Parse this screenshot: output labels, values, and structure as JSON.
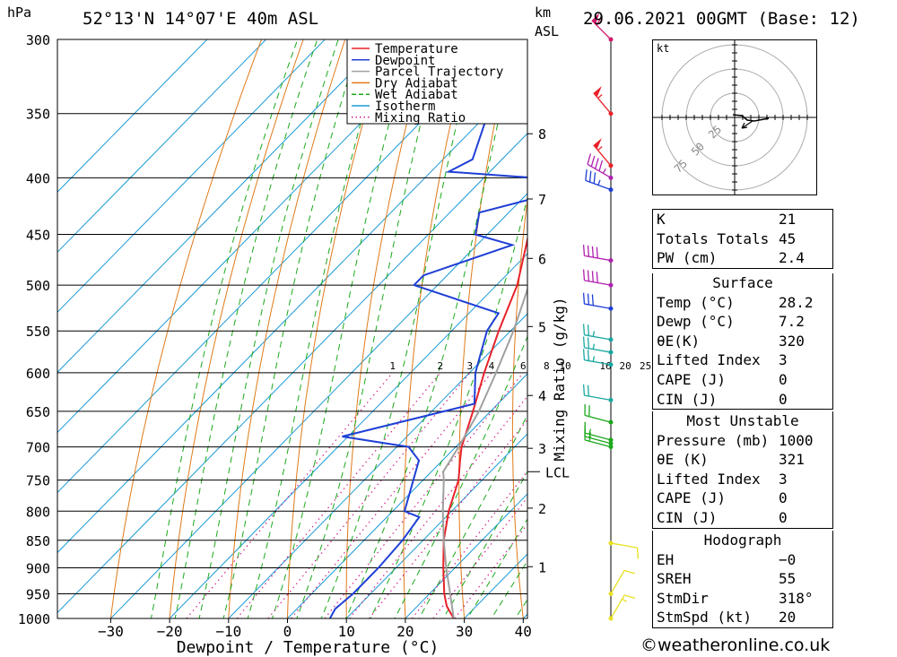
{
  "header": {
    "location": "52°13'N 14°07'E 40m ASL",
    "datetime": "29.06.2021 00GMT (Base: 12)",
    "pressure_unit": "hPa",
    "km_unit": "km",
    "asl_label": "ASL"
  },
  "chart_data": {
    "type": "line",
    "xlabel": "Dewpoint / Temperature (°C)",
    "ylabel": "hPa",
    "mixing_ratio_axis_label": "Mixing Ratio (g/kg)",
    "x_ticks": [
      -30,
      -20,
      -10,
      0,
      10,
      20,
      30,
      40
    ],
    "x_tick_labels": [
      "−30",
      "−20",
      "−10",
      "0",
      "10",
      "20",
      "30",
      "40"
    ],
    "pressure_levels": [
      300,
      350,
      400,
      450,
      500,
      550,
      600,
      650,
      700,
      750,
      800,
      850,
      900,
      950,
      1000
    ],
    "xlim": [
      -40,
      40
    ],
    "ylim": [
      1000,
      300
    ],
    "skew_deg_per_log": 1,
    "height_ticks": [
      {
        "label": "8",
        "p": 365
      },
      {
        "label": "7",
        "p": 418
      },
      {
        "label": "6",
        "p": 473
      },
      {
        "label": "5",
        "p": 545
      },
      {
        "label": "4",
        "p": 629
      },
      {
        "label": "3",
        "p": 702
      },
      {
        "label": "2",
        "p": 795
      },
      {
        "label": "1",
        "p": 898
      }
    ],
    "lcl": {
      "label": "LCL",
      "p": 737
    },
    "mixing_ratio_labels": [
      "1",
      "2",
      "3",
      "4",
      "6",
      "8",
      "10",
      "16",
      "20",
      "25"
    ],
    "mixing_ratio_values": [
      1,
      2,
      3,
      4,
      6,
      8,
      10,
      16,
      20,
      25
    ],
    "legend": {
      "position": "top-right of plot",
      "entries": [
        {
          "name": "Temperature",
          "color": "#e8222a",
          "style": "solid"
        },
        {
          "name": "Dewpoint",
          "color": "#1f3fd6",
          "style": "solid"
        },
        {
          "name": "Parcel Trajectory",
          "color": "#a0a0a0",
          "style": "solid"
        },
        {
          "name": "Dry Adiabat",
          "color": "#e07a1a",
          "style": "solid"
        },
        {
          "name": "Wet Adiabat",
          "color": "#1aa81a",
          "style": "dashed"
        },
        {
          "name": "Isotherm",
          "color": "#1a9ad6",
          "style": "solid"
        },
        {
          "name": "Mixing Ratio",
          "color": "#d0208a",
          "style": "dotted"
        }
      ]
    },
    "series": [
      {
        "name": "Temperature",
        "color": "#e8222a",
        "points": [
          [
            1000,
            28.2
          ],
          [
            975,
            25
          ],
          [
            950,
            22.5
          ],
          [
            900,
            18
          ],
          [
            850,
            13.5
          ],
          [
            800,
            9.5
          ],
          [
            750,
            6
          ],
          [
            720,
            3
          ],
          [
            700,
            1
          ],
          [
            650,
            -3
          ],
          [
            600,
            -7.5
          ],
          [
            550,
            -12
          ],
          [
            500,
            -16.5
          ],
          [
            450,
            -23
          ],
          [
            400,
            -31.5
          ],
          [
            385,
            -32
          ],
          [
            350,
            -36.5
          ],
          [
            300,
            -44.5
          ]
        ]
      },
      {
        "name": "Dewpoint",
        "color": "#1f3fd6",
        "points": [
          [
            1000,
            7.2
          ],
          [
            980,
            6.5
          ],
          [
            950,
            7
          ],
          [
            900,
            7
          ],
          [
            850,
            6.5
          ],
          [
            810,
            5.5
          ],
          [
            800,
            2
          ],
          [
            720,
            -4
          ],
          [
            700,
            -8
          ],
          [
            685,
            -21
          ],
          [
            640,
            -4
          ],
          [
            600,
            -9
          ],
          [
            550,
            -14
          ],
          [
            530,
            -15
          ],
          [
            500,
            -34
          ],
          [
            490,
            -34
          ],
          [
            460,
            -24
          ],
          [
            450,
            -32
          ],
          [
            430,
            -35
          ],
          [
            412,
            -25
          ],
          [
            402,
            -25.5
          ],
          [
            395,
            -47
          ],
          [
            385,
            -45
          ],
          [
            350,
            -50
          ],
          [
            300,
            -56
          ]
        ]
      },
      {
        "name": "Parcel Trajectory",
        "color": "#a0a0a0",
        "points": [
          [
            1000,
            28.2
          ],
          [
            950,
            23.5
          ],
          [
            900,
            18.5
          ],
          [
            850,
            13.5
          ],
          [
            800,
            8.5
          ],
          [
            750,
            3.5
          ],
          [
            737,
            2
          ],
          [
            700,
            0.5
          ],
          [
            650,
            -2
          ],
          [
            600,
            -5.5
          ],
          [
            550,
            -9.5
          ],
          [
            500,
            -14.5
          ],
          [
            450,
            -21
          ],
          [
            400,
            -28.5
          ],
          [
            350,
            -37.5
          ],
          [
            300,
            -48.5
          ]
        ]
      }
    ]
  },
  "wind_barbs": {
    "description_color": "by level",
    "levels": [
      {
        "p": 300,
        "dir": 315,
        "kt": 60,
        "color": "#d01a6a"
      },
      {
        "p": 350,
        "dir": 320,
        "kt": 55,
        "color": "#e8222a"
      },
      {
        "p": 390,
        "dir": 320,
        "kt": 55,
        "color": "#e8222a"
      },
      {
        "p": 400,
        "dir": 300,
        "kt": 45,
        "color": "#b020b0"
      },
      {
        "p": 410,
        "dir": 290,
        "kt": 35,
        "color": "#1f3fd6"
      },
      {
        "p": 475,
        "dir": 280,
        "kt": 40,
        "color": "#b020b0"
      },
      {
        "p": 500,
        "dir": 280,
        "kt": 40,
        "color": "#b020b0"
      },
      {
        "p": 525,
        "dir": 280,
        "kt": 30,
        "color": "#1f3fd6"
      },
      {
        "p": 560,
        "dir": 280,
        "kt": 25,
        "color": "#1aa8a0"
      },
      {
        "p": 575,
        "dir": 280,
        "kt": 25,
        "color": "#1aa8a0"
      },
      {
        "p": 590,
        "dir": 280,
        "kt": 25,
        "color": "#1aa8a0"
      },
      {
        "p": 635,
        "dir": 280,
        "kt": 20,
        "color": "#1aa8a0"
      },
      {
        "p": 665,
        "dir": 285,
        "kt": 20,
        "color": "#1aa81a"
      },
      {
        "p": 690,
        "dir": 285,
        "kt": 15,
        "color": "#1aa81a"
      },
      {
        "p": 695,
        "dir": 285,
        "kt": 15,
        "color": "#1aa81a"
      },
      {
        "p": 700,
        "dir": 285,
        "kt": 15,
        "color": "#1aa81a"
      },
      {
        "p": 855,
        "dir": 100,
        "kt": 10,
        "color": "#e8e020"
      },
      {
        "p": 950,
        "dir": 30,
        "kt": 10,
        "color": "#e8e020"
      },
      {
        "p": 1000,
        "dir": 30,
        "kt": 15,
        "color": "#e8e020"
      }
    ]
  },
  "hodograph": {
    "unit_label": "kt",
    "ring_labels": [
      "25",
      "50",
      "75"
    ]
  },
  "indices": {
    "rows": [
      {
        "label": "K",
        "value": "21"
      },
      {
        "label": "Totals Totals",
        "value": "45"
      },
      {
        "label": "PW (cm)",
        "value": "2.4"
      }
    ]
  },
  "surface": {
    "title": "Surface",
    "rows": [
      {
        "label": "Temp (°C)",
        "value": "28.2"
      },
      {
        "label": "Dewp (°C)",
        "value": "7.2"
      },
      {
        "label": "θE(K)",
        "value": "320"
      },
      {
        "label": "Lifted Index",
        "value": "3"
      },
      {
        "label": "CAPE (J)",
        "value": "0"
      },
      {
        "label": "CIN (J)",
        "value": "0"
      }
    ]
  },
  "most_unstable": {
    "title": "Most Unstable",
    "rows": [
      {
        "label": "Pressure (mb)",
        "value": "1000"
      },
      {
        "label": "θE (K)",
        "value": "321"
      },
      {
        "label": "Lifted Index",
        "value": "3"
      },
      {
        "label": "CAPE (J)",
        "value": "0"
      },
      {
        "label": "CIN (J)",
        "value": "0"
      }
    ]
  },
  "hodograph_table": {
    "title": "Hodograph",
    "rows": [
      {
        "label": "EH",
        "value": "−0"
      },
      {
        "label": "SREH",
        "value": "55"
      },
      {
        "label": "StmDir",
        "value": "318°"
      },
      {
        "label": "StmSpd (kt)",
        "value": "20"
      }
    ]
  },
  "copyright": "©weatheronline.co.uk"
}
